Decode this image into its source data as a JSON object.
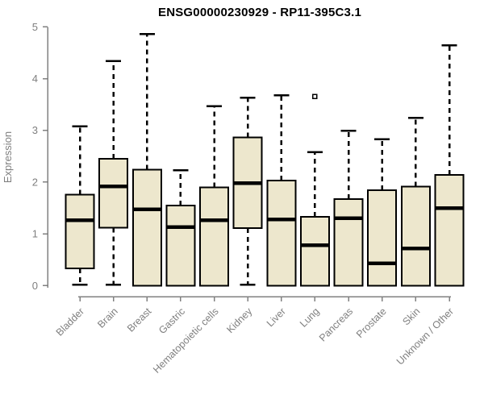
{
  "colors": {
    "background": "#ffffff",
    "box_fill": "#ede7cd",
    "box_border": "#000000",
    "median": "#000000",
    "whisker": "#000000",
    "outlier_fill": "#ffffff",
    "axis": "#808080",
    "tick_label": "#7f7f7f",
    "title": "#000000"
  },
  "chart_data": {
    "type": "boxplot",
    "title": "ENSG00000230929 - RP11-395C3.1",
    "xlabel": "",
    "ylabel": "Expression",
    "ylim": [
      0,
      5
    ],
    "yticks": [
      0,
      1,
      2,
      3,
      4,
      5
    ],
    "grid": false,
    "legend": false,
    "categories": [
      "Bladder",
      "Brain",
      "Breast",
      "Gastric",
      "Hematopoietic cells",
      "Kidney",
      "Liver",
      "Lung",
      "Pancreas",
      "Prostate",
      "Skin",
      "Unknown / Other"
    ],
    "boxes": [
      {
        "category": "Bladder",
        "whisker_low": 0.02,
        "q1": 0.33,
        "median": 1.26,
        "q3": 1.76,
        "whisker_high": 3.08,
        "outliers": []
      },
      {
        "category": "Brain",
        "whisker_low": 0.02,
        "q1": 1.12,
        "median": 1.92,
        "q3": 2.45,
        "whisker_high": 4.34,
        "outliers": []
      },
      {
        "category": "Breast",
        "whisker_low": 0.0,
        "q1": 0.0,
        "median": 1.47,
        "q3": 2.24,
        "whisker_high": 4.86,
        "outliers": []
      },
      {
        "category": "Gastric",
        "whisker_low": 0.0,
        "q1": 0.0,
        "median": 1.13,
        "q3": 1.55,
        "whisker_high": 2.23,
        "outliers": []
      },
      {
        "category": "Hematopoietic cells",
        "whisker_low": 0.0,
        "q1": 0.0,
        "median": 1.26,
        "q3": 1.9,
        "whisker_high": 3.47,
        "outliers": []
      },
      {
        "category": "Kidney",
        "whisker_low": 0.02,
        "q1": 1.11,
        "median": 1.98,
        "q3": 2.86,
        "whisker_high": 3.63,
        "outliers": []
      },
      {
        "category": "Liver",
        "whisker_low": 0.0,
        "q1": 0.0,
        "median": 1.28,
        "q3": 2.03,
        "whisker_high": 3.68,
        "outliers": []
      },
      {
        "category": "Lung",
        "whisker_low": 0.0,
        "q1": 0.0,
        "median": 0.78,
        "q3": 1.33,
        "whisker_high": 2.58,
        "outliers": [
          3.65
        ]
      },
      {
        "category": "Pancreas",
        "whisker_low": 0.0,
        "q1": 0.0,
        "median": 1.3,
        "q3": 1.67,
        "whisker_high": 2.99,
        "outliers": []
      },
      {
        "category": "Prostate",
        "whisker_low": 0.0,
        "q1": 0.0,
        "median": 0.43,
        "q3": 1.84,
        "whisker_high": 2.83,
        "outliers": []
      },
      {
        "category": "Skin",
        "whisker_low": 0.0,
        "q1": 0.0,
        "median": 0.72,
        "q3": 1.91,
        "whisker_high": 3.24,
        "outliers": []
      },
      {
        "category": "Unknown / Other",
        "whisker_low": 0.0,
        "q1": 0.0,
        "median": 1.5,
        "q3": 2.14,
        "whisker_high": 4.64,
        "outliers": []
      }
    ]
  }
}
